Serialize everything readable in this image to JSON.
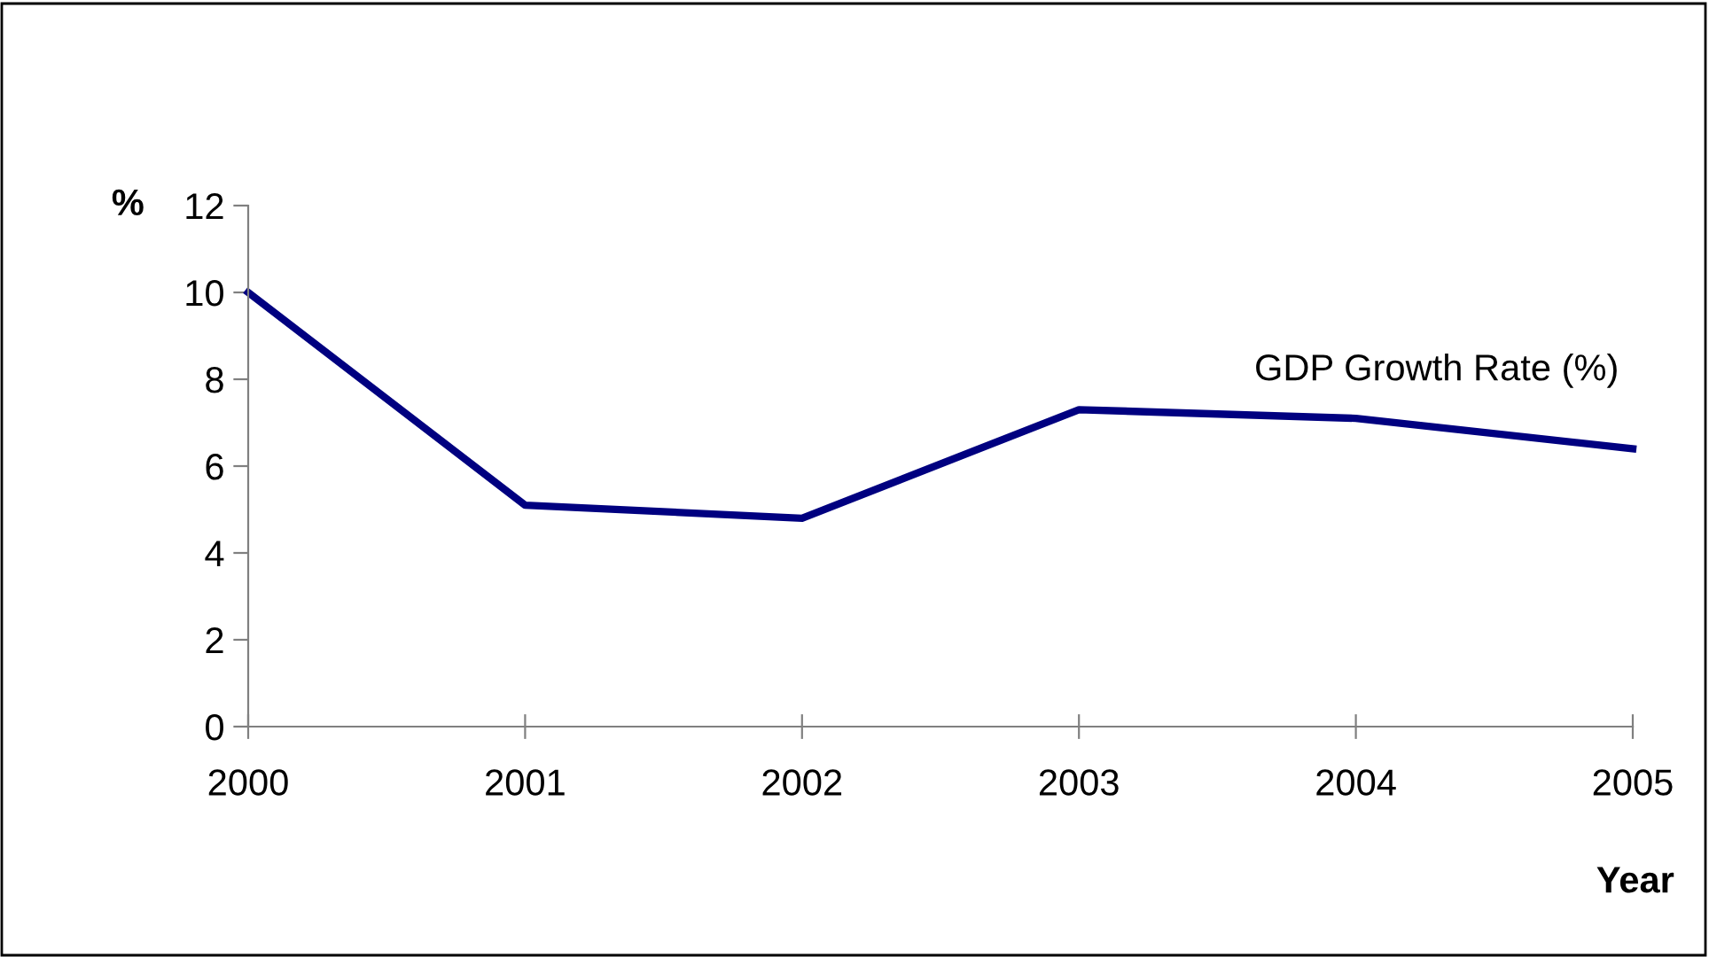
{
  "chart_data": {
    "type": "line",
    "xlabel": "Year",
    "ylabel": "%",
    "categories": [
      "2000",
      "2001",
      "2002",
      "2003",
      "2004",
      "2005"
    ],
    "series": [
      {
        "name": "GDP Growth Rate (%)",
        "color": "#000080",
        "values": [
          10.0,
          5.1,
          4.8,
          7.3,
          7.1,
          6.4
        ]
      }
    ],
    "ylim": [
      0,
      12
    ],
    "yticks": [
      0,
      2,
      4,
      6,
      8,
      10,
      12
    ],
    "grid": false,
    "marker": "none",
    "line_style": "solid"
  }
}
